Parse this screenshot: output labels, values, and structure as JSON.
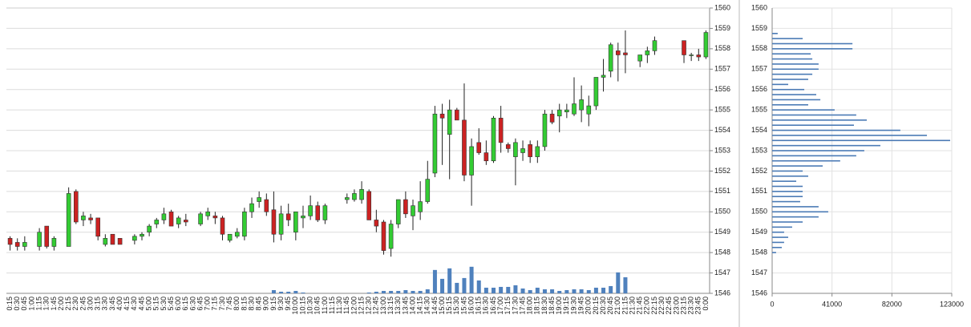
{
  "chart_data": [
    {
      "type": "candlestick",
      "categories": [
        "0:15",
        "0:30",
        "0:45",
        "1:00",
        "1:15",
        "1:30",
        "1:45",
        "2:00",
        "2:15",
        "2:30",
        "2:45",
        "3:00",
        "3:15",
        "3:30",
        "3:45",
        "4:00",
        "4:15",
        "4:30",
        "4:45",
        "5:00",
        "5:15",
        "5:30",
        "5:45",
        "6:00",
        "6:15",
        "6:30",
        "6:45",
        "7:00",
        "7:15",
        "7:30",
        "7:45",
        "8:00",
        "8:15",
        "8:30",
        "8:45",
        "9:00",
        "9:15",
        "9:30",
        "9:45",
        "10:00",
        "10:15",
        "10:30",
        "10:45",
        "11:00",
        "11:15",
        "11:30",
        "11:45",
        "12:00",
        "12:15",
        "12:30",
        "12:45",
        "13:00",
        "13:15",
        "13:30",
        "13:45",
        "14:00",
        "14:15",
        "14:30",
        "14:45",
        "15:00",
        "15:15",
        "15:30",
        "15:45",
        "16:00",
        "16:15",
        "16:30",
        "16:45",
        "17:00",
        "17:15",
        "17:30",
        "17:45",
        "18:00",
        "18:15",
        "18:30",
        "18:45",
        "19:00",
        "19:15",
        "19:30",
        "19:45",
        "20:00",
        "20:15",
        "20:30",
        "20:45",
        "21:00",
        "21:15",
        "21:30",
        "21:45",
        "22:00",
        "22:15",
        "22:30",
        "22:45",
        "23:00",
        "23:15",
        "23:30",
        "23:45",
        "0:00"
      ],
      "open": [
        1548.7,
        1548.5,
        1548.3,
        null,
        1548.3,
        1549.3,
        1548.3,
        null,
        1548.3,
        1551.0,
        1549.6,
        1549.7,
        1549.7,
        1548.4,
        1548.9,
        1548.7,
        null,
        1548.6,
        1548.8,
        1549.0,
        1549.4,
        1549.6,
        1550.0,
        1549.4,
        1549.6,
        null,
        1549.4,
        1549.8,
        1549.8,
        1549.7,
        1548.6,
        1548.8,
        1548.8,
        1550.0,
        1550.5,
        1550.6,
        1550.1,
        1548.9,
        1549.9,
        1549.0,
        1549.7,
        1549.8,
        1550.3,
        1549.6,
        null,
        null,
        1550.6,
        1550.6,
        1550.6,
        1551.0,
        1549.6,
        1549.5,
        1548.2,
        1549.4,
        1550.6,
        1549.8,
        1550.0,
        1550.5,
        1551.9,
        1554.8,
        1553.8,
        1555.0,
        1554.5,
        1551.8,
        1553.4,
        1552.9,
        1552.5,
        1554.6,
        1553.3,
        1552.7,
        1552.9,
        1553.3,
        1552.7,
        1553.2,
        1554.8,
        1554.7,
        1554.9,
        1554.8,
        1555.0,
        1554.8,
        1555.2,
        1556.6,
        1556.9,
        1557.9,
        1557.8,
        null,
        1557.4,
        1557.7,
        1557.9,
        null,
        null,
        null,
        1558.4,
        1557.7,
        1557.7,
        1557.6
      ],
      "high": [
        1548.8,
        1548.7,
        1548.8,
        null,
        1549.2,
        1549.3,
        1548.8,
        null,
        1551.2,
        1551.1,
        1550.0,
        1549.9,
        1549.7,
        1548.9,
        1548.9,
        1548.7,
        null,
        1548.9,
        1549.0,
        1549.4,
        1549.7,
        1550.2,
        1550.1,
        1549.8,
        1549.9,
        null,
        1550.0,
        1550.2,
        1550.0,
        1549.8,
        1548.9,
        1549.2,
        1550.2,
        1550.7,
        1551.0,
        1550.9,
        1551.0,
        1550.3,
        1550.4,
        1550.0,
        1550.3,
        1550.8,
        1550.5,
        1550.4,
        null,
        null,
        1550.9,
        1551.1,
        1551.5,
        1551.1,
        1550.1,
        1549.6,
        1549.6,
        1550.6,
        1551.0,
        1550.6,
        1551.5,
        1552.5,
        1555.2,
        1555.3,
        1555.5,
        1555.1,
        1556.3,
        1553.6,
        1554.1,
        1553.5,
        1554.7,
        1555.2,
        1553.4,
        1553.6,
        1553.5,
        1553.5,
        1553.5,
        1555.0,
        1555.0,
        1555.3,
        1555.3,
        1556.6,
        1556.2,
        1555.7,
        1556.6,
        1557.5,
        1558.3,
        1558.3,
        1558.9,
        null,
        1557.7,
        1558.1,
        1558.6,
        null,
        null,
        null,
        1558.4,
        1557.8,
        1558.0,
        1558.9
      ],
      "low": [
        1548.1,
        1548.1,
        1548.1,
        null,
        1548.1,
        1548.2,
        1548.1,
        null,
        1548.3,
        1549.4,
        1549.3,
        1549.4,
        1548.6,
        1548.3,
        1548.4,
        1548.4,
        null,
        1548.4,
        1548.6,
        1548.8,
        1549.2,
        1549.4,
        1549.3,
        1549.2,
        1549.3,
        null,
        1549.3,
        1549.6,
        1549.4,
        1548.6,
        1548.5,
        1548.7,
        1548.6,
        1549.7,
        1550.2,
        1549.8,
        1548.5,
        1548.6,
        1549.3,
        1548.6,
        1549.2,
        1549.6,
        1549.5,
        1549.4,
        null,
        null,
        1550.4,
        1550.5,
        1550.4,
        1549.6,
        1549.0,
        1547.9,
        1547.8,
        1549.2,
        1549.7,
        1549.1,
        1549.6,
        1550.4,
        1551.7,
        1552.3,
        1551.6,
        1554.5,
        1551.5,
        1550.3,
        1552.8,
        1552.3,
        1552.4,
        1552.9,
        1552.9,
        1551.3,
        1552.5,
        1552.4,
        1552.4,
        1553.0,
        1554.3,
        1553.9,
        1554.6,
        1554.7,
        1554.4,
        1554.2,
        1555.0,
        1555.9,
        1556.6,
        1556.4,
        1556.8,
        null,
        1557.1,
        1557.3,
        1557.7,
        null,
        null,
        null,
        1557.3,
        1557.4,
        1557.4,
        1557.5
      ],
      "close": [
        1548.4,
        1548.3,
        1548.5,
        null,
        1549.0,
        1548.3,
        1548.7,
        null,
        1550.9,
        1549.5,
        1549.8,
        1549.6,
        1548.8,
        1548.7,
        1548.4,
        1548.4,
        null,
        1548.8,
        1548.9,
        1549.3,
        1549.6,
        1549.9,
        1549.3,
        1549.7,
        1549.5,
        null,
        1549.9,
        1550.0,
        1549.7,
        1548.9,
        1548.9,
        1549.0,
        1550.0,
        1550.4,
        1550.7,
        1550.0,
        1548.9,
        1549.9,
        1549.6,
        1550.0,
        1549.8,
        1550.3,
        1549.6,
        1550.3,
        null,
        null,
        1550.7,
        1550.9,
        1551.1,
        1549.6,
        1549.3,
        1548.1,
        1549.4,
        1550.6,
        1549.9,
        1550.3,
        1550.5,
        1551.6,
        1554.8,
        1554.6,
        1555.0,
        1554.5,
        1551.8,
        1553.2,
        1552.9,
        1552.5,
        1554.6,
        1553.4,
        1553.1,
        1553.4,
        1553.1,
        1552.7,
        1553.2,
        1554.8,
        1554.4,
        1555.0,
        1555.0,
        1555.3,
        1555.5,
        1555.2,
        1556.6,
        1556.7,
        1558.2,
        1557.7,
        1557.7,
        null,
        1557.7,
        1557.9,
        1558.4,
        null,
        null,
        null,
        1557.7,
        1557.7,
        1557.6,
        1558.8
      ],
      "volume": {
        "axis": "y2",
        "color": "#4f81bd",
        "values": [
          0,
          0,
          0,
          null,
          0,
          0,
          0,
          null,
          0,
          0,
          0,
          0,
          0,
          0,
          0,
          0,
          null,
          0,
          0,
          0,
          0,
          0,
          0,
          0,
          0,
          null,
          0,
          0,
          0,
          0,
          0,
          0,
          0,
          0,
          0,
          0,
          960,
          480,
          480,
          720,
          240,
          0,
          0,
          0,
          null,
          null,
          0,
          0,
          0,
          240,
          480,
          720,
          720,
          720,
          960,
          720,
          720,
          1200,
          6960,
          4320,
          7440,
          3120,
          4560,
          7920,
          3840,
          1680,
          1680,
          1920,
          1920,
          2400,
          1440,
          960,
          1680,
          1200,
          1200,
          720,
          960,
          1200,
          1200,
          960,
          1680,
          1680,
          2160,
          6240,
          4800,
          null,
          0,
          0,
          0,
          null,
          null,
          null,
          0,
          0,
          0,
          0
        ]
      },
      "up_color": "#33cc33",
      "down_color": "#cc2222",
      "ylim": [
        1546,
        1560
      ],
      "yticks": [
        1546,
        1547,
        1548,
        1549,
        1550,
        1551,
        1552,
        1553,
        1554,
        1555,
        1556,
        1557,
        1558,
        1559,
        1560
      ],
      "y2lim": [
        0,
        85000
      ],
      "grid": true
    },
    {
      "type": "hbar",
      "y": [
        1558.75,
        1558.5,
        1558.25,
        1558.0,
        1557.75,
        1557.5,
        1557.25,
        1557.0,
        1556.75,
        1556.5,
        1556.25,
        1556.0,
        1555.75,
        1555.5,
        1555.25,
        1555.0,
        1554.75,
        1554.5,
        1554.25,
        1554.0,
        1553.75,
        1553.5,
        1553.25,
        1553.0,
        1552.75,
        1552.5,
        1552.25,
        1552.0,
        1551.75,
        1551.5,
        1551.25,
        1551.0,
        1550.75,
        1550.5,
        1550.25,
        1550.0,
        1549.75,
        1549.5,
        1549.25,
        1549.0,
        1548.75,
        1548.5,
        1548.25,
        1548.0
      ],
      "values": [
        3800,
        20900,
        55000,
        55000,
        26400,
        27500,
        31800,
        31800,
        27500,
        24700,
        11000,
        22000,
        30200,
        33000,
        24700,
        42800,
        57600,
        64800,
        56000,
        87800,
        106000,
        121900,
        74100,
        63100,
        57600,
        46600,
        34600,
        20900,
        24700,
        16500,
        20900,
        20900,
        20900,
        19200,
        31800,
        38400,
        31800,
        20900,
        13700,
        8200,
        11000,
        8200,
        6600,
        2700
      ],
      "color": "#4a7ab5",
      "xlim": [
        0,
        123000
      ],
      "xticks": [
        0,
        41000,
        82000,
        123000
      ],
      "ylim": [
        1546,
        1560
      ],
      "yticks": [
        1546,
        1547,
        1548,
        1549,
        1550,
        1551,
        1552,
        1553,
        1554,
        1555,
        1556,
        1557,
        1558,
        1559,
        1560
      ],
      "grid": true
    }
  ]
}
